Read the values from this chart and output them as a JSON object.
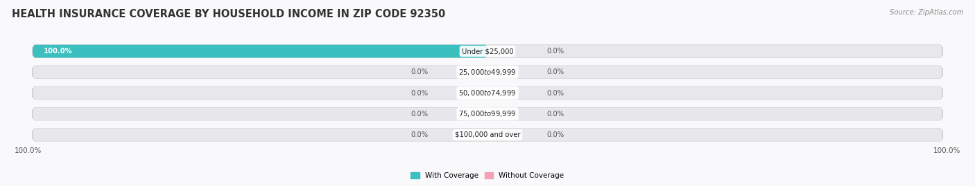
{
  "title": "HEALTH INSURANCE COVERAGE BY HOUSEHOLD INCOME IN ZIP CODE 92350",
  "source": "Source: ZipAtlas.com",
  "categories": [
    "Under $25,000",
    "$25,000 to $49,999",
    "$50,000 to $74,999",
    "$75,000 to $99,999",
    "$100,000 and over"
  ],
  "with_coverage": [
    100.0,
    0.0,
    0.0,
    0.0,
    0.0
  ],
  "without_coverage": [
    0.0,
    0.0,
    0.0,
    0.0,
    0.0
  ],
  "color_with": "#3bbfbf",
  "color_without": "#f4a0b5",
  "bg_bar": "#e8e8ec",
  "bg_figure": "#f9f9fb",
  "bottom_left_label": "100.0%",
  "bottom_right_label": "100.0%",
  "title_fontsize": 10.5,
  "bar_height": 0.62,
  "axis_max": 100
}
